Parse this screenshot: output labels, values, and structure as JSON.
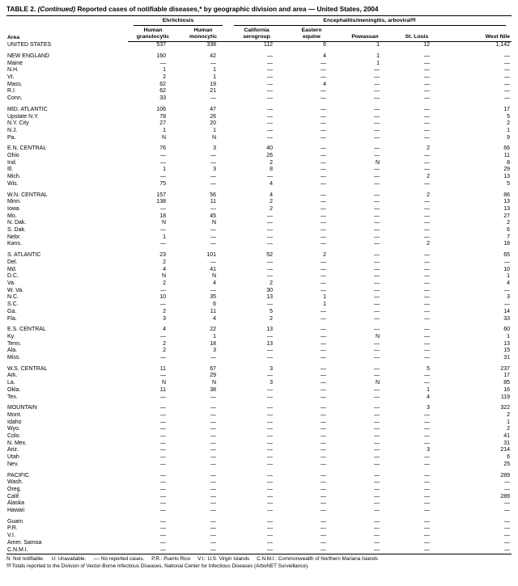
{
  "title": {
    "table_label": "TABLE 2.",
    "continued": "(Continued)",
    "text": "Reported cases of notifiable diseases,* by geographic division and area — United States, 2004"
  },
  "table": {
    "area_header": "Area",
    "groups": [
      {
        "label": "Ehrlichiosis"
      },
      {
        "label": "Encephalitis/meningitis,  arboviral",
        "sup": "§§"
      }
    ],
    "columns": [
      "Human\ngranulocytic",
      "Human\nmonocytic",
      "California\nserogroup",
      "Eastern\nequine",
      "Powassan",
      "St. Louis",
      "West Nile"
    ],
    "sections": [
      {
        "rows": [
          {
            "area": "UNITED STATES",
            "values": [
              "537",
              "338",
              "112",
              "6",
              "1",
              "12",
              "1,142"
            ]
          }
        ]
      },
      {
        "rows": [
          {
            "area": "NEW ENGLAND",
            "values": [
              "160",
              "42",
              "—",
              "4",
              "1",
              "—",
              "—"
            ]
          },
          {
            "area": "Maine",
            "values": [
              "—",
              "—",
              "—",
              "—",
              "1",
              "—",
              "—"
            ]
          },
          {
            "area": "N.H.",
            "values": [
              "1",
              "1",
              "—",
              "—",
              "—",
              "—",
              "—"
            ]
          },
          {
            "area": "Vt.",
            "values": [
              "2",
              "1",
              "—",
              "—",
              "—",
              "—",
              "—"
            ]
          },
          {
            "area": "Mass.",
            "values": [
              "62",
              "19",
              "—",
              "4",
              "—",
              "—",
              "—"
            ]
          },
          {
            "area": "R.I.",
            "values": [
              "62",
              "21",
              "—",
              "—",
              "—",
              "—",
              "—"
            ]
          },
          {
            "area": "Conn.",
            "values": [
              "33",
              "—",
              "—",
              "—",
              "—",
              "—",
              "—"
            ]
          }
        ]
      },
      {
        "rows": [
          {
            "area": "MID. ATLANTIC",
            "values": [
              "106",
              "47",
              "—",
              "—",
              "—",
              "—",
              "17"
            ]
          },
          {
            "area": "Upstate N.Y.",
            "values": [
              "78",
              "26",
              "—",
              "—",
              "—",
              "—",
              "5"
            ]
          },
          {
            "area": "N.Y. City",
            "values": [
              "27",
              "20",
              "—",
              "—",
              "—",
              "—",
              "2"
            ]
          },
          {
            "area": "N.J.",
            "values": [
              "1",
              "1",
              "—",
              "—",
              "—",
              "—",
              "1"
            ]
          },
          {
            "area": "Pa.",
            "values": [
              "N",
              "N",
              "—",
              "—",
              "—",
              "—",
              "9"
            ]
          }
        ]
      },
      {
        "rows": [
          {
            "area": "E.N. CENTRAL",
            "values": [
              "76",
              "3",
              "40",
              "—",
              "—",
              "2",
              "66"
            ]
          },
          {
            "area": "Ohio",
            "values": [
              "—",
              "—",
              "26",
              "—",
              "—",
              "—",
              "11"
            ]
          },
          {
            "area": "Ind.",
            "values": [
              "—",
              "—",
              "2",
              "—",
              "N",
              "—",
              "8"
            ]
          },
          {
            "area": "Ill.",
            "values": [
              "1",
              "3",
              "8",
              "—",
              "—",
              "—",
              "29"
            ]
          },
          {
            "area": "Mich.",
            "values": [
              "—",
              "—",
              "—",
              "—",
              "—",
              "2",
              "13"
            ]
          },
          {
            "area": "Wis.",
            "values": [
              "75",
              "—",
              "4",
              "—",
              "—",
              "—",
              "5"
            ]
          }
        ]
      },
      {
        "rows": [
          {
            "area": "W.N. CENTRAL",
            "values": [
              "157",
              "56",
              "4",
              "—",
              "—",
              "2",
              "86"
            ]
          },
          {
            "area": "Minn.",
            "values": [
              "138",
              "11",
              "2",
              "—",
              "—",
              "—",
              "13"
            ]
          },
          {
            "area": "Iowa",
            "values": [
              "—",
              "—",
              "2",
              "—",
              "—",
              "—",
              "13"
            ]
          },
          {
            "area": "Mo.",
            "values": [
              "18",
              "45",
              "—",
              "—",
              "—",
              "—",
              "27"
            ]
          },
          {
            "area": "N. Dak.",
            "values": [
              "N",
              "N",
              "—",
              "—",
              "—",
              "—",
              "2"
            ]
          },
          {
            "area": "S. Dak.",
            "values": [
              "—",
              "—",
              "—",
              "—",
              "—",
              "—",
              "6"
            ]
          },
          {
            "area": "Nebr.",
            "values": [
              "1",
              "—",
              "—",
              "—",
              "—",
              "—",
              "7"
            ]
          },
          {
            "area": "Kans.",
            "values": [
              "—",
              "—",
              "—",
              "—",
              "—",
              "2",
              "18"
            ]
          }
        ]
      },
      {
        "rows": [
          {
            "area": "S. ATLANTIC",
            "values": [
              "23",
              "101",
              "52",
              "2",
              "—",
              "—",
              "65"
            ]
          },
          {
            "area": "Del.",
            "values": [
              "2",
              "—",
              "—",
              "—",
              "—",
              "—",
              "—"
            ]
          },
          {
            "area": "Md.",
            "values": [
              "4",
              "41",
              "—",
              "—",
              "—",
              "—",
              "10"
            ]
          },
          {
            "area": "D.C.",
            "values": [
              "N",
              "N",
              "—",
              "—",
              "—",
              "—",
              "1"
            ]
          },
          {
            "area": "Va.",
            "values": [
              "2",
              "4",
              "2",
              "—",
              "—",
              "—",
              "4"
            ]
          },
          {
            "area": "W. Va.",
            "values": [
              "—",
              "—",
              "30",
              "—",
              "—",
              "—",
              "—"
            ]
          },
          {
            "area": "N.C.",
            "values": [
              "10",
              "35",
              "13",
              "1",
              "—",
              "—",
              "3"
            ]
          },
          {
            "area": "S.C.",
            "values": [
              "—",
              "6",
              "—",
              "1",
              "—",
              "—",
              "—"
            ]
          },
          {
            "area": "Ga.",
            "values": [
              "2",
              "11",
              "5",
              "—",
              "—",
              "—",
              "14"
            ]
          },
          {
            "area": "Fla.",
            "values": [
              "3",
              "4",
              "2",
              "—",
              "—",
              "—",
              "33"
            ]
          }
        ]
      },
      {
        "rows": [
          {
            "area": "E.S. CENTRAL",
            "values": [
              "4",
              "22",
              "13",
              "—",
              "—",
              "—",
              "60"
            ]
          },
          {
            "area": "Ky.",
            "values": [
              "—",
              "1",
              "—",
              "—",
              "N",
              "—",
              "1"
            ]
          },
          {
            "area": "Tenn.",
            "values": [
              "2",
              "18",
              "13",
              "—",
              "—",
              "—",
              "13"
            ]
          },
          {
            "area": "Ala.",
            "values": [
              "2",
              "3",
              "—",
              "—",
              "—",
              "—",
              "15"
            ]
          },
          {
            "area": "Miss.",
            "values": [
              "—",
              "—",
              "—",
              "—",
              "—",
              "—",
              "31"
            ]
          }
        ]
      },
      {
        "rows": [
          {
            "area": "W.S. CENTRAL",
            "values": [
              "11",
              "67",
              "3",
              "—",
              "—",
              "5",
              "237"
            ]
          },
          {
            "area": "Ark.",
            "values": [
              "—",
              "29",
              "—",
              "—",
              "—",
              "—",
              "17"
            ]
          },
          {
            "area": "La.",
            "values": [
              "N",
              "N",
              "3",
              "—",
              "N",
              "—",
              "85"
            ]
          },
          {
            "area": "Okla.",
            "values": [
              "11",
              "38",
              "—",
              "—",
              "—",
              "1",
              "16"
            ]
          },
          {
            "area": "Tex.",
            "values": [
              "—",
              "—",
              "—",
              "—",
              "—",
              "4",
              "119"
            ]
          }
        ]
      },
      {
        "rows": [
          {
            "area": "MOUNTAIN",
            "values": [
              "—",
              "—",
              "—",
              "—",
              "—",
              "3",
              "322"
            ]
          },
          {
            "area": "Mont.",
            "values": [
              "—",
              "—",
              "—",
              "—",
              "—",
              "—",
              "2"
            ]
          },
          {
            "area": "Idaho",
            "values": [
              "—",
              "—",
              "—",
              "—",
              "—",
              "—",
              "1"
            ]
          },
          {
            "area": "Wyo.",
            "values": [
              "—",
              "—",
              "—",
              "—",
              "—",
              "—",
              "2"
            ]
          },
          {
            "area": "Colo.",
            "values": [
              "—",
              "—",
              "—",
              "—",
              "—",
              "—",
              "41"
            ]
          },
          {
            "area": "N. Mex.",
            "values": [
              "—",
              "—",
              "—",
              "—",
              "—",
              "—",
              "31"
            ]
          },
          {
            "area": "Ariz.",
            "values": [
              "—",
              "—",
              "—",
              "—",
              "—",
              "3",
              "214"
            ]
          },
          {
            "area": "Utah",
            "values": [
              "—",
              "—",
              "—",
              "—",
              "—",
              "—",
              "6"
            ]
          },
          {
            "area": "Nev.",
            "values": [
              "—",
              "—",
              "—",
              "—",
              "—",
              "—",
              "25"
            ]
          }
        ]
      },
      {
        "rows": [
          {
            "area": "PACIFIC",
            "values": [
              "—",
              "—",
              "—",
              "—",
              "—",
              "—",
              "289"
            ]
          },
          {
            "area": "Wash.",
            "values": [
              "—",
              "—",
              "—",
              "—",
              "—",
              "—",
              "—"
            ]
          },
          {
            "area": "Oreg.",
            "values": [
              "—",
              "—",
              "—",
              "—",
              "—",
              "—",
              "—"
            ]
          },
          {
            "area": "Calif.",
            "values": [
              "—",
              "—",
              "—",
              "—",
              "—",
              "—",
              "289"
            ]
          },
          {
            "area": "Alaska",
            "values": [
              "—",
              "—",
              "—",
              "—",
              "—",
              "—",
              "—"
            ]
          },
          {
            "area": "Hawaii",
            "values": [
              "—",
              "—",
              "—",
              "—",
              "—",
              "—",
              "—"
            ]
          }
        ]
      },
      {
        "rows": [
          {
            "area": "Guam",
            "values": [
              "—",
              "—",
              "—",
              "—",
              "—",
              "—",
              "—"
            ]
          },
          {
            "area": "P.R.",
            "values": [
              "—",
              "—",
              "—",
              "—",
              "—",
              "—",
              "—"
            ]
          },
          {
            "area": "V.I.",
            "values": [
              "—",
              "—",
              "—",
              "—",
              "—",
              "—",
              "—"
            ]
          },
          {
            "area": "Amer. Samoa",
            "values": [
              "—",
              "—",
              "—",
              "—",
              "—",
              "—",
              "—"
            ]
          },
          {
            "area": "C.N.M.I.",
            "values": [
              "—",
              "—",
              "—",
              "—",
              "—",
              "—",
              "—"
            ]
          }
        ]
      }
    ]
  },
  "footnotes": {
    "abbreviations": [
      "N: Not notifiable.",
      "U: Unavailable.",
      "—: No reported cases.",
      "P.R.: Puerto Rico",
      "V.I.: U.S. Virgin Islands",
      "C.N.M.I.: Commonwealth of Northern Mariana Islands"
    ],
    "arboviral_note": {
      "sup": "§§",
      "text": "Totals reported to the Division of Vector-Borne Infectious Diseases, National Center for Infectious Diseases (ArboNET Surveillance)."
    }
  }
}
